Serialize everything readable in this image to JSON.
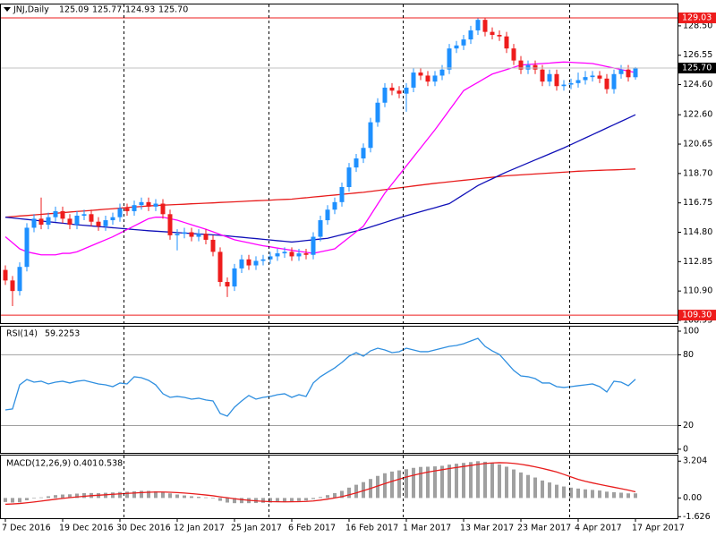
{
  "chart_data": [
    {
      "type": "candlestick",
      "title": "JNJ,Daily",
      "quote_labels": [
        "125.09",
        "125.77",
        "124.93",
        "125.70"
      ],
      "categories": [
        "7 Dec 2016",
        null,
        null,
        null,
        null,
        null,
        null,
        null,
        "19 Dec 2016",
        null,
        null,
        null,
        null,
        null,
        null,
        null,
        "30 Dec 2016",
        null,
        null,
        null,
        null,
        null,
        null,
        null,
        "12 Jan 2017",
        null,
        null,
        null,
        null,
        null,
        null,
        null,
        "25 Jan 2017",
        null,
        null,
        null,
        null,
        null,
        null,
        null,
        "6 Feb 2017",
        null,
        null,
        null,
        null,
        null,
        null,
        null,
        "16 Feb 2017",
        null,
        null,
        null,
        null,
        null,
        null,
        null,
        "1 Mar 2017",
        null,
        null,
        null,
        null,
        null,
        null,
        null,
        "13 Mar 2017",
        null,
        null,
        null,
        null,
        null,
        null,
        null,
        "23 Mar 2017",
        null,
        null,
        null,
        null,
        null,
        null,
        null,
        "4 Apr 2017",
        null,
        null,
        null,
        null,
        null,
        null,
        null,
        "17 Apr 2017"
      ],
      "open": [
        112.3,
        111.6,
        110.9,
        112.5,
        115.1,
        115.7,
        115.3,
        115.8,
        116.2,
        115.7,
        115.3,
        115.9,
        116.0,
        115.5,
        115.2,
        115.6,
        115.8,
        116.4,
        116.2,
        116.6,
        116.8,
        116.5,
        116.7,
        116.0,
        114.6,
        114.7,
        114.8,
        114.5,
        114.7,
        114.3,
        113.5,
        111.5,
        111.2,
        112.4,
        113.0,
        112.6,
        112.9,
        113.0,
        113.2,
        113.4,
        113.5,
        113.2,
        113.4,
        113.3,
        114.5,
        115.6,
        116.3,
        116.8,
        117.8,
        119.1,
        119.7,
        120.4,
        122.1,
        123.4,
        124.4,
        124.2,
        124.0,
        124.4,
        125.4,
        125.2,
        124.8,
        125.2,
        125.6,
        127.0,
        127.2,
        127.6,
        128.2,
        128.9,
        128.1,
        127.9,
        127.8,
        127.0,
        126.2,
        125.6,
        125.9,
        125.6,
        124.8,
        125.3,
        124.5,
        124.6,
        124.7,
        124.9,
        125.1,
        125.2,
        125.0,
        124.3,
        125.3,
        125.6,
        125.09
      ],
      "high": [
        112.6,
        111.9,
        112.8,
        115.4,
        116.0,
        117.1,
        116.1,
        116.5,
        116.5,
        116.0,
        116.2,
        116.3,
        116.3,
        115.8,
        115.9,
        116.1,
        116.7,
        116.7,
        116.9,
        117.1,
        117.1,
        117.0,
        117.0,
        116.3,
        115.0,
        115.1,
        115.1,
        115.0,
        115.0,
        114.6,
        113.8,
        111.8,
        112.7,
        113.3,
        113.3,
        113.2,
        113.3,
        113.5,
        113.7,
        113.8,
        113.8,
        113.7,
        113.7,
        114.8,
        115.9,
        116.6,
        117.1,
        118.1,
        119.4,
        120.0,
        120.7,
        122.4,
        123.7,
        124.7,
        124.7,
        124.5,
        124.7,
        125.7,
        125.7,
        125.5,
        125.5,
        125.9,
        127.3,
        127.5,
        127.9,
        128.5,
        129.03,
        129.0,
        128.4,
        128.2,
        128.1,
        127.3,
        126.5,
        126.2,
        126.2,
        125.9,
        125.6,
        125.6,
        124.9,
        125.0,
        125.4,
        125.5,
        125.5,
        125.5,
        125.3,
        125.6,
        125.9,
        125.9,
        125.77
      ],
      "low": [
        111.3,
        109.9,
        110.6,
        112.2,
        114.8,
        115.0,
        115.0,
        115.5,
        115.4,
        115.0,
        115.0,
        115.6,
        115.2,
        114.9,
        114.9,
        115.3,
        115.5,
        115.9,
        115.9,
        116.3,
        116.2,
        116.2,
        115.7,
        114.3,
        113.6,
        114.4,
        114.2,
        114.2,
        114.0,
        113.2,
        111.2,
        110.5,
        110.9,
        112.1,
        112.3,
        112.3,
        112.6,
        112.7,
        112.9,
        113.1,
        112.9,
        112.9,
        113.0,
        113.0,
        114.2,
        115.3,
        116.0,
        116.5,
        117.5,
        118.8,
        119.4,
        120.1,
        121.8,
        123.1,
        123.9,
        123.7,
        122.8,
        124.1,
        124.9,
        124.5,
        124.5,
        124.9,
        125.3,
        126.7,
        126.9,
        127.3,
        127.9,
        127.8,
        127.6,
        127.5,
        126.7,
        125.9,
        125.3,
        125.3,
        125.3,
        124.5,
        124.5,
        124.2,
        124.2,
        124.3,
        124.4,
        124.6,
        124.8,
        124.7,
        124.0,
        124.0,
        125.0,
        124.8,
        124.93
      ],
      "close": [
        111.6,
        110.9,
        112.5,
        115.1,
        115.7,
        115.3,
        115.8,
        116.2,
        115.7,
        115.3,
        115.9,
        116.0,
        115.5,
        115.2,
        115.6,
        115.8,
        116.4,
        116.2,
        116.6,
        116.8,
        116.5,
        116.7,
        116.0,
        114.6,
        114.7,
        114.8,
        114.5,
        114.7,
        114.3,
        113.5,
        111.5,
        111.2,
        112.4,
        113.0,
        112.6,
        112.9,
        113.0,
        113.2,
        113.4,
        113.5,
        113.2,
        113.4,
        113.3,
        114.5,
        115.6,
        116.3,
        116.8,
        117.8,
        119.1,
        119.7,
        120.4,
        122.1,
        123.4,
        124.4,
        124.2,
        124.0,
        124.4,
        125.4,
        125.2,
        124.8,
        125.2,
        125.6,
        127.0,
        127.2,
        127.6,
        128.2,
        128.9,
        128.1,
        127.9,
        127.8,
        127.0,
        126.2,
        125.6,
        125.9,
        125.6,
        124.8,
        125.3,
        124.5,
        124.6,
        124.7,
        124.9,
        125.1,
        125.2,
        125.0,
        124.3,
        125.3,
        125.6,
        125.09,
        125.7
      ],
      "up_color": "#1e90ff",
      "down_color": "#ee1c1c",
      "series": [
        {
          "color": "#e81c1c",
          "values": [
            115.8,
            115.84,
            115.88,
            115.91,
            115.95,
            115.99,
            116.03,
            116.06,
            116.1,
            116.14,
            116.18,
            116.21,
            116.25,
            116.29,
            116.33,
            116.36,
            116.4,
            116.44,
            116.48,
            116.51,
            116.55,
            116.57,
            116.6,
            116.62,
            116.64,
            116.66,
            116.69,
            116.71,
            116.73,
            116.75,
            116.78,
            116.8,
            116.82,
            116.84,
            116.87,
            116.89,
            116.91,
            116.93,
            116.96,
            116.98,
            117.0,
            117.05,
            117.09,
            117.14,
            117.18,
            117.23,
            117.27,
            117.32,
            117.36,
            117.41,
            117.45,
            117.51,
            117.57,
            117.63,
            117.69,
            117.75,
            117.81,
            117.87,
            117.93,
            117.99,
            118.05,
            118.1,
            118.15,
            118.2,
            118.25,
            118.3,
            118.35,
            118.4,
            118.45,
            118.5,
            118.55,
            118.58,
            118.61,
            118.64,
            118.67,
            118.7,
            118.73,
            118.76,
            118.79,
            118.82,
            118.85,
            118.87,
            118.89,
            118.91,
            118.93,
            118.94,
            118.96,
            118.98,
            119.0
          ]
        },
        {
          "color": "#1010b8",
          "values": [
            115.8,
            115.75,
            115.7,
            115.65,
            115.6,
            115.55,
            115.5,
            115.45,
            115.4,
            115.35,
            115.3,
            115.26,
            115.22,
            115.18,
            115.14,
            115.1,
            115.06,
            115.02,
            114.98,
            114.94,
            114.9,
            114.87,
            114.84,
            114.81,
            114.78,
            114.75,
            114.72,
            114.69,
            114.66,
            114.63,
            114.6,
            114.56,
            114.51,
            114.47,
            114.42,
            114.38,
            114.33,
            114.29,
            114.24,
            114.2,
            114.15,
            114.2,
            114.25,
            114.3,
            114.35,
            114.4,
            114.52,
            114.64,
            114.76,
            114.88,
            115.0,
            115.15,
            115.3,
            115.45,
            115.6,
            115.75,
            115.9,
            116.03,
            116.17,
            116.3,
            116.43,
            116.57,
            116.7,
            117.0,
            117.3,
            117.6,
            117.9,
            118.13,
            118.35,
            118.58,
            118.8,
            119.0,
            119.2,
            119.4,
            119.6,
            119.8,
            120.0,
            120.2,
            120.4,
            120.62,
            120.84,
            121.06,
            121.28,
            121.5,
            121.72,
            121.94,
            122.16,
            122.38,
            122.6
          ]
        },
        {
          "color": "#ff00ff",
          "values": [
            114.5,
            114.1,
            113.7,
            113.5,
            113.4,
            113.3,
            113.3,
            113.3,
            113.4,
            113.4,
            113.5,
            113.7,
            113.9,
            114.1,
            114.3,
            114.5,
            114.74,
            114.98,
            115.22,
            115.46,
            115.7,
            115.8,
            115.8,
            115.7,
            115.6,
            115.45,
            115.3,
            115.15,
            115.0,
            114.83,
            114.65,
            114.48,
            114.3,
            114.2,
            114.1,
            114.0,
            113.9,
            113.83,
            113.75,
            113.68,
            113.6,
            113.53,
            113.47,
            113.4,
            113.5,
            113.6,
            113.7,
            114.08,
            114.45,
            114.83,
            115.2,
            115.93,
            116.67,
            117.4,
            118.0,
            118.6,
            119.2,
            119.8,
            120.4,
            121.0,
            121.6,
            122.25,
            122.9,
            123.55,
            124.2,
            124.48,
            124.75,
            125.03,
            125.3,
            125.45,
            125.6,
            125.75,
            125.9,
            125.93,
            125.97,
            126.0,
            126.03,
            126.07,
            126.1,
            126.08,
            126.05,
            126.03,
            126.0,
            125.9,
            125.8,
            125.7,
            125.6,
            125.5,
            125.4
          ]
        }
      ],
      "ylim": [
        108.77,
        129.92
      ],
      "yticks": [
        {
          "value": 128.5,
          "label": "128.50"
        },
        126.55,
        {
          "value": 124.6,
          "label": "124.60"
        },
        {
          "value": 122.6,
          "label": "122.60"
        },
        120.65,
        {
          "value": 118.7,
          "label": "118.70"
        },
        116.75,
        {
          "value": 114.8,
          "label": "114.80"
        },
        112.85,
        {
          "value": 110.9,
          "label": "110.90"
        },
        108.95
      ],
      "hlines": [
        129.03,
        {
          "value": 109.3,
          "label": "109.30"
        }
      ],
      "hline_color": "#ee1c1c",
      "last_price": {
        "value": 125.7,
        "label": "125.70"
      }
    },
    {
      "type": "line",
      "title": "RSI(14)",
      "color": "#2f8fe0",
      "values": [
        33.3,
        34.1,
        54.5,
        59.1,
        56.8,
        57.6,
        55.3,
        56.8,
        57.6,
        56.1,
        57.6,
        58.3,
        56.8,
        55.3,
        54.5,
        53.0,
        56.1,
        55.3,
        61.4,
        60.6,
        58.3,
        54.5,
        47.0,
        43.9,
        44.7,
        43.9,
        42.4,
        43.2,
        41.7,
        40.9,
        30.3,
        28.0,
        35.6,
        40.9,
        45.5,
        42.4,
        43.9,
        44.7,
        46.2,
        47.0,
        43.9,
        46.2,
        44.7,
        56.1,
        61.4,
        65.2,
        68.9,
        73.5,
        78.8,
        81.8,
        78.8,
        83.3,
        85.6,
        84.1,
        81.8,
        82.6,
        85.6,
        84.1,
        82.6,
        82.6,
        84.1,
        85.6,
        87.1,
        87.9,
        89.4,
        91.7,
        93.9,
        87.1,
        83.3,
        80.3,
        73.5,
        66.7,
        62.1,
        61.4,
        59.8,
        56.1,
        56.1,
        53.0,
        52.3,
        53.0,
        53.8,
        54.5,
        55.3,
        53.0,
        48.5,
        57.6,
        56.8,
        53.8,
        59.2253
      ],
      "ylim": [
        -3.1,
        103.8
      ],
      "yticks": [
        100,
        80,
        20,
        0
      ],
      "levels": [
        80,
        20
      ]
    },
    {
      "type": "macd",
      "title": "MACD(12,26,9)",
      "histogram": {
        "color": "#a0a0a0",
        "values": [
          -0.35,
          -0.4,
          -0.38,
          -0.2,
          -0.05,
          0.05,
          0.15,
          0.25,
          0.3,
          0.32,
          0.38,
          0.42,
          0.43,
          0.42,
          0.45,
          0.48,
          0.52,
          0.55,
          0.58,
          0.62,
          0.62,
          0.58,
          0.5,
          0.4,
          0.3,
          0.22,
          0.15,
          0.1,
          0.05,
          -0.05,
          -0.25,
          -0.4,
          -0.45,
          -0.45,
          -0.45,
          -0.44,
          -0.42,
          -0.4,
          -0.36,
          -0.32,
          -0.3,
          -0.26,
          -0.22,
          -0.1,
          0.08,
          0.25,
          0.42,
          0.62,
          0.9,
          1.15,
          1.38,
          1.65,
          1.92,
          2.15,
          2.3,
          2.4,
          2.5,
          2.62,
          2.7,
          2.72,
          2.75,
          2.8,
          2.9,
          2.98,
          3.05,
          3.12,
          3.2,
          3.15,
          3.05,
          2.92,
          2.72,
          2.48,
          2.22,
          2.0,
          1.78,
          1.52,
          1.35,
          1.15,
          1.0,
          0.9,
          0.82,
          0.75,
          0.7,
          0.65,
          0.55,
          0.5,
          0.46,
          0.4,
          0.401
        ]
      },
      "signal": {
        "color": "#e81c1c",
        "values": [
          -0.55,
          -0.52,
          -0.48,
          -0.42,
          -0.35,
          -0.27,
          -0.19,
          -0.11,
          -0.04,
          0.03,
          0.09,
          0.15,
          0.2,
          0.24,
          0.28,
          0.32,
          0.36,
          0.4,
          0.43,
          0.47,
          0.5,
          0.52,
          0.52,
          0.5,
          0.47,
          0.43,
          0.38,
          0.32,
          0.26,
          0.19,
          0.1,
          0.02,
          -0.07,
          -0.14,
          -0.2,
          -0.25,
          -0.29,
          -0.32,
          -0.33,
          -0.34,
          -0.33,
          -0.32,
          -0.3,
          -0.26,
          -0.19,
          -0.1,
          0.0,
          0.12,
          0.27,
          0.44,
          0.63,
          0.83,
          1.04,
          1.25,
          1.45,
          1.64,
          1.82,
          1.98,
          2.12,
          2.25,
          2.36,
          2.46,
          2.56,
          2.65,
          2.74,
          2.83,
          2.92,
          3.0,
          3.05,
          3.07,
          3.06,
          3.01,
          2.93,
          2.83,
          2.71,
          2.57,
          2.42,
          2.26,
          2.05,
          1.83,
          1.62,
          1.45,
          1.31,
          1.18,
          1.05,
          0.93,
          0.81,
          0.68,
          0.538
        ]
      },
      "ylim": [
        -1.76,
        3.69
      ],
      "yticks": [
        3.204,
        {
          "value": 0,
          "label": "0.00"
        },
        -1.626
      ]
    }
  ]
}
